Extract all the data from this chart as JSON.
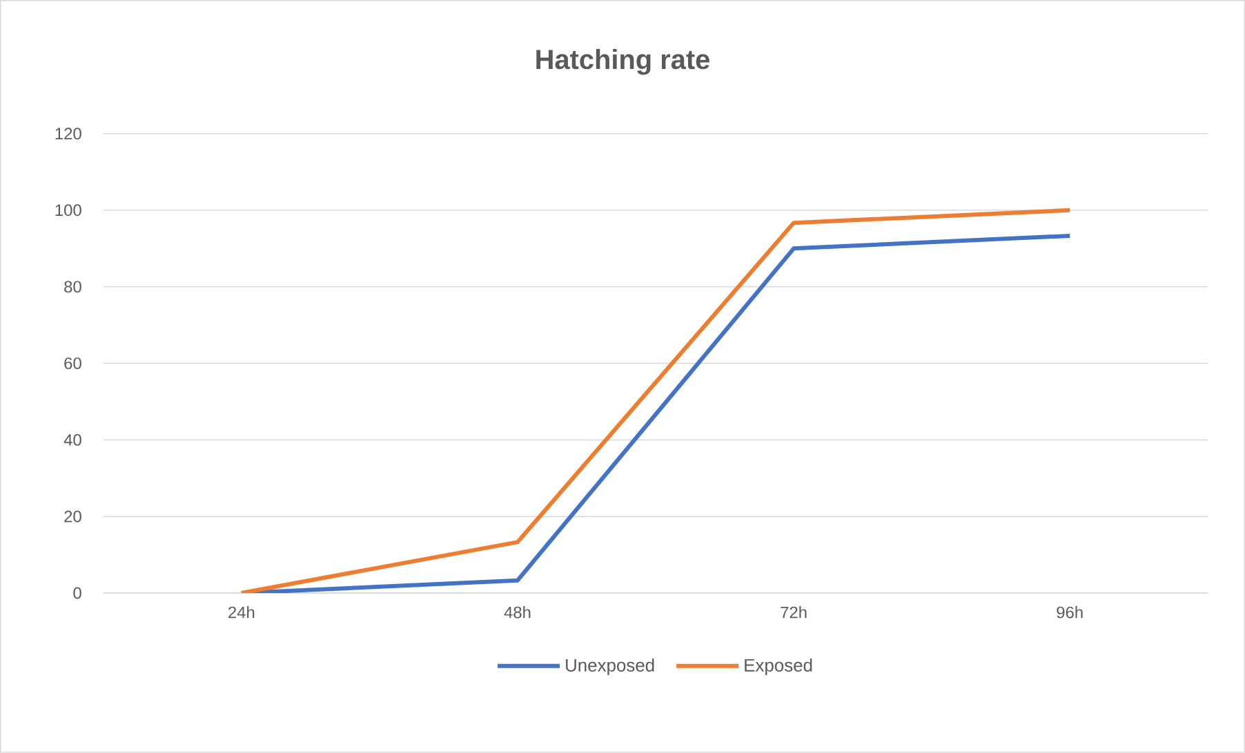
{
  "chart_data": {
    "type": "line",
    "title": "Hatching rate",
    "categories": [
      "24h",
      "48h",
      "72h",
      "96h"
    ],
    "series": [
      {
        "name": "Unexposed",
        "color": "#4472c4",
        "values": [
          0,
          3.3,
          90,
          93.3
        ]
      },
      {
        "name": "Exposed",
        "color": "#ed7d31",
        "values": [
          0,
          13.3,
          96.7,
          100
        ]
      }
    ],
    "ylim": [
      0,
      120
    ],
    "yticks": [
      0,
      20,
      40,
      60,
      80,
      100,
      120
    ],
    "grid": "y",
    "legend": "bottom"
  }
}
